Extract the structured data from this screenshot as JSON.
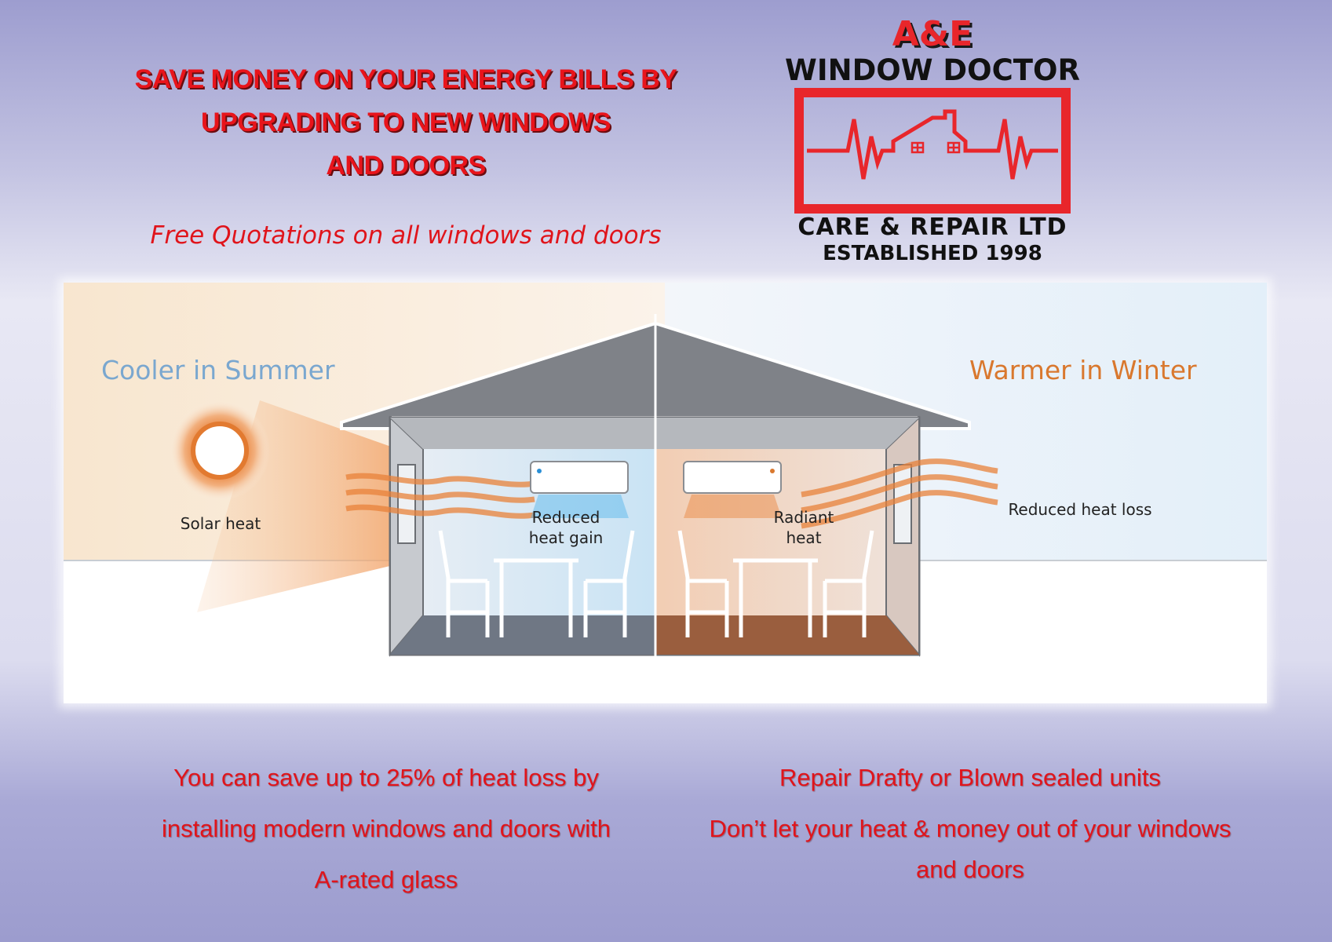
{
  "headline": {
    "line1": "SAVE MONEY ON YOUR ENERGY BILLS BY",
    "line2": "UPGRADING TO NEW WINDOWS",
    "line3": "AND DOORS"
  },
  "subheadline": "Free Quotations on all windows and doors",
  "logo": {
    "brand_initials": "A&E",
    "brand_name": "WINDOW DOCTOR",
    "tagline": "CARE & REPAIR LTD",
    "established": "ESTABLISHED 1998",
    "color": "#e8262b"
  },
  "illustration": {
    "left_title": "Cooler in Summer",
    "right_title": "Warmer in Winter",
    "solar_heat": "Solar heat",
    "reduced_heat_gain": [
      "Reduced",
      "heat gain"
    ],
    "radiant_heat": [
      "Radiant",
      "heat"
    ],
    "reduced_heat_loss": "Reduced heat loss",
    "colors": {
      "summer_title": "#7aa7cf",
      "winter_title": "#d9782e",
      "heat": "#e8823a",
      "cool": "#4fb3ea"
    }
  },
  "footer": {
    "left": [
      "You can save up to 25% of heat loss by",
      "installing modern windows and doors with",
      "A-rated glass"
    ],
    "right": [
      "Repair Drafty or Blown sealed units",
      "Don’t let your heat & money out of your windows",
      "and doors"
    ]
  }
}
